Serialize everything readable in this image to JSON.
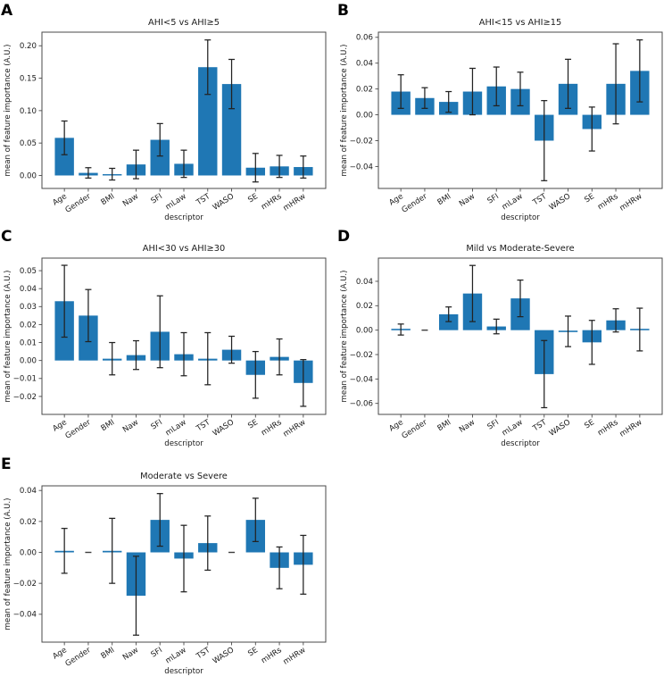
{
  "figure": {
    "bar_color": "#1f77b4",
    "error_color": "#222222",
    "axis_color": "#4a4a4a",
    "text_color": "#1a1a1a",
    "background": "#ffffff"
  },
  "chart_data": [
    {
      "panel": "A",
      "type": "bar",
      "title": "AHI<5 vs AHI≥5",
      "xlabel": "descriptor",
      "ylabel": "mean of feature importance (A.U.)",
      "categories": [
        "Age",
        "Gender",
        "BMI",
        "Naw",
        "SFI",
        "mLaw",
        "TST",
        "WASO",
        "SE",
        "mHRs",
        "mHRw"
      ],
      "values": [
        0.058,
        0.004,
        0.002,
        0.017,
        0.055,
        0.018,
        0.167,
        0.141,
        0.012,
        0.014,
        0.013
      ],
      "errors": [
        0.026,
        0.008,
        0.009,
        0.022,
        0.025,
        0.021,
        0.042,
        0.038,
        0.022,
        0.017,
        0.017
      ],
      "yticks": [
        "0.00",
        "0.05",
        "0.10",
        "0.15",
        "0.20"
      ],
      "ylim": [
        -0.02,
        0.221
      ],
      "grid": false,
      "legend": "none"
    },
    {
      "panel": "B",
      "type": "bar",
      "title": "AHI<15 vs AHI≥15",
      "xlabel": "descriptor",
      "ylabel": "mean of feature importance (A.U.)",
      "categories": [
        "Age",
        "Gender",
        "BMI",
        "Naw",
        "SFI",
        "mLaw",
        "TST",
        "WASO",
        "SE",
        "mHRs",
        "mHRw"
      ],
      "values": [
        0.018,
        0.013,
        0.01,
        0.018,
        0.022,
        0.02,
        -0.02,
        0.024,
        -0.011,
        0.024,
        0.034
      ],
      "errors": [
        0.013,
        0.008,
        0.008,
        0.018,
        0.015,
        0.013,
        0.031,
        0.019,
        0.017,
        0.031,
        0.024
      ],
      "yticks": [
        "−0.04",
        "−0.02",
        "0.00",
        "0.02",
        "0.04",
        "0.06"
      ],
      "ylim": [
        -0.057,
        0.064
      ],
      "grid": false,
      "legend": "none"
    },
    {
      "panel": "C",
      "type": "bar",
      "title": "AHI<30 vs AHI≥30",
      "xlabel": "descriptor",
      "ylabel": "mean of feature importance (A.U.)",
      "categories": [
        "Age",
        "Gender",
        "BMI",
        "Naw",
        "SFI",
        "mLaw",
        "TST",
        "WASO",
        "SE",
        "mHRs",
        "mHRw"
      ],
      "values": [
        0.033,
        0.025,
        0.001,
        0.003,
        0.016,
        0.0035,
        0.001,
        0.006,
        -0.008,
        0.002,
        -0.0125
      ],
      "errors": [
        0.02,
        0.0145,
        0.009,
        0.008,
        0.02,
        0.012,
        0.0145,
        0.0075,
        0.013,
        0.01,
        0.013
      ],
      "yticks": [
        "−0.02",
        "−0.01",
        "0.00",
        "0.01",
        "0.02",
        "0.03",
        "0.04",
        "0.05"
      ],
      "ylim": [
        -0.03,
        0.057
      ],
      "grid": false,
      "legend": "none"
    },
    {
      "panel": "D",
      "type": "bar",
      "title": "Mild vs Moderate-Severe",
      "xlabel": "descriptor",
      "ylabel": "mean of feature importance (A.U.)",
      "categories": [
        "Age",
        "Gender",
        "BMI",
        "Naw",
        "SFI",
        "mLaw",
        "TST",
        "WASO",
        "SE",
        "mHRs",
        "mHRw"
      ],
      "values": [
        0.0005,
        0.0,
        0.013,
        0.03,
        0.003,
        0.026,
        -0.036,
        -0.001,
        -0.01,
        0.008,
        0.0005
      ],
      "errors": [
        0.0045,
        0.0,
        0.006,
        0.023,
        0.006,
        0.015,
        0.0275,
        0.0125,
        0.018,
        0.0095,
        0.0175
      ],
      "yticks": [
        "−0.06",
        "−0.04",
        "−0.02",
        "0.00",
        "0.02",
        "0.04"
      ],
      "ylim": [
        -0.069,
        0.059
      ],
      "grid": false,
      "legend": "none"
    },
    {
      "panel": "E",
      "type": "bar",
      "title": "Moderate vs Severe",
      "xlabel": "descriptor",
      "ylabel": "mean of feature importance (A.U.)",
      "categories": [
        "Age",
        "Gender",
        "BMI",
        "Naw",
        "SFI",
        "mLaw",
        "TST",
        "WASO",
        "SE",
        "mHRs",
        "mHRw"
      ],
      "values": [
        0.001,
        0.0,
        0.001,
        -0.028,
        0.021,
        -0.004,
        0.006,
        0.0,
        0.021,
        -0.01,
        -0.008
      ],
      "errors": [
        0.0145,
        0.0,
        0.021,
        0.0255,
        0.017,
        0.0215,
        0.0175,
        0.0,
        0.014,
        0.0135,
        0.019
      ],
      "yticks": [
        "−0.04",
        "−0.02",
        "0.00",
        "0.02",
        "0.04"
      ],
      "ylim": [
        -0.058,
        0.043
      ],
      "grid": false,
      "legend": "none"
    }
  ]
}
